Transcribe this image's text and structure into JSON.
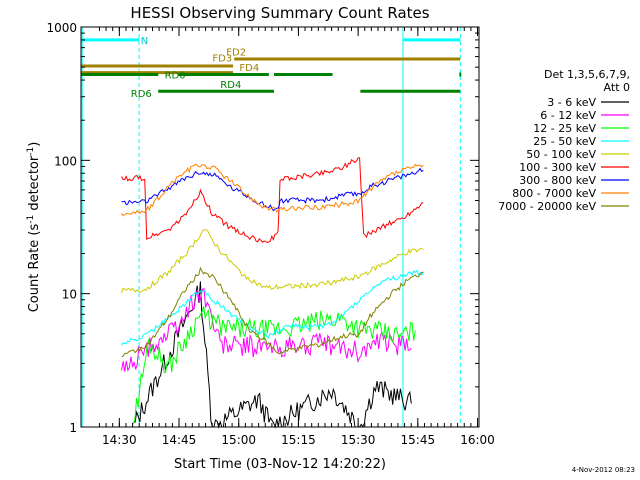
{
  "chart_data": {
    "type": "line",
    "title": "HESSI Observing Summary Count Rates",
    "xlabel": "Start Time (03-Nov-12 14:20:22)",
    "ylabel_main": "Count Rate (s",
    "ylabel_sup1": "-1",
    "ylabel_mid": " detector",
    "ylabel_sup2": "-1",
    "ylabel_end": ")",
    "x_unit": "minutes after 14:20:22",
    "xlim": [
      0,
      100
    ],
    "ylim": [
      1,
      1000
    ],
    "yscale": "log",
    "x_ticks": [
      {
        "t": 9.63,
        "label": "14:30"
      },
      {
        "t": 24.63,
        "label": "14:45"
      },
      {
        "t": 39.63,
        "label": "15:00"
      },
      {
        "t": 54.63,
        "label": "15:15"
      },
      {
        "t": 69.63,
        "label": "15:30"
      },
      {
        "t": 84.63,
        "label": "15:45"
      },
      {
        "t": 99.63,
        "label": "16:00"
      }
    ],
    "y_ticks": [
      {
        "v": 1,
        "label": "1"
      },
      {
        "v": 10,
        "label": "10"
      },
      {
        "v": 100,
        "label": "100"
      },
      {
        "v": 1000,
        "label": "1000"
      }
    ],
    "legend_title_1": "Det 1,3,5,6,7,9,",
    "legend_title_2": "Att 0",
    "legend_placement": "right",
    "timestamp": "4-Nov-2012 08:23",
    "night_solid": [
      0.3,
      80.9
    ],
    "night_dashed": [
      14.6,
      95.3
    ],
    "night_label": "N",
    "night_segments": [
      [
        0.3,
        14.6
      ],
      [
        80.9,
        95.3
      ]
    ],
    "flags": [
      {
        "label": "FD2",
        "color": "#a08000",
        "label_t": 36.5,
        "label_v": 655,
        "y_v": 576,
        "segments": [
          [
            38.5,
            95.3
          ]
        ]
      },
      {
        "label": "FD3",
        "color": "#a08000",
        "label_t": 33,
        "label_v": 590,
        "y_v": 510,
        "segments": [
          [
            0,
            38.2
          ]
        ]
      },
      {
        "label": "FD4",
        "color": "#a08000",
        "label_t": 39.8,
        "label_v": 500,
        "y_v": 455,
        "segments": [
          [
            0,
            38.2
          ]
        ]
      },
      {
        "label": "RD0",
        "color": "#008000",
        "label_t": 21,
        "label_v": 440,
        "y_v": 440,
        "segments": [
          [
            0,
            19.4
          ],
          [
            24.5,
            47.2
          ],
          [
            48.5,
            63.2
          ]
        ]
      },
      {
        "label": "RD4",
        "color": "#008000",
        "label_t": 35,
        "label_v": 375,
        "y_v": 330,
        "segments": [
          [
            19.4,
            48.5
          ],
          [
            70.2,
            95.3
          ]
        ]
      },
      {
        "label": "RD6",
        "color": "#008000",
        "label_t": 12.5,
        "label_v": 320,
        "y_v": 320,
        "segments": []
      }
    ],
    "series": [
      {
        "name": "3 - 6 keV",
        "color": "#000000",
        "points": [
          [
            13.2,
            1.0
          ],
          [
            30,
            10.8
          ],
          [
            33,
            1.0
          ],
          [
            44.5,
            1.6
          ],
          [
            48,
            1.0
          ],
          [
            63,
            1.9
          ],
          [
            70,
            1.0
          ],
          [
            74,
            2.0
          ],
          [
            83,
            1.5
          ]
        ]
      },
      {
        "name": "6 - 12 keV",
        "color": "#ff00ff",
        "points": [
          [
            10.2,
            2.6
          ],
          [
            16.5,
            3.8
          ],
          [
            24.5,
            5.8
          ],
          [
            30.5,
            11.0
          ],
          [
            35,
            4.2
          ],
          [
            48,
            3.9
          ],
          [
            60,
            4.2
          ],
          [
            70,
            3.7
          ],
          [
            76,
            4.4
          ],
          [
            83,
            3.9
          ]
        ]
      },
      {
        "name": "12 - 25 keV",
        "color": "#00ff00",
        "points": [
          [
            13.2,
            1.1
          ],
          [
            17,
            4.3
          ],
          [
            22,
            2.8
          ],
          [
            30,
            7.0
          ],
          [
            36,
            5.5
          ],
          [
            48,
            5.3
          ],
          [
            65,
            6.6
          ],
          [
            70,
            5.5
          ],
          [
            80,
            4.8
          ],
          [
            84,
            5.3
          ]
        ]
      },
      {
        "name": "25 - 50 keV",
        "color": "#00ffff",
        "points": [
          [
            10.2,
            4.2
          ],
          [
            16,
            4.8
          ],
          [
            22,
            6.5
          ],
          [
            30,
            10.8
          ],
          [
            37,
            7.3
          ],
          [
            43,
            5.5
          ],
          [
            47.5,
            4.8
          ],
          [
            52,
            5.8
          ],
          [
            58,
            5.6
          ],
          [
            63.5,
            6.0
          ],
          [
            68,
            8.0
          ],
          [
            75,
            12.0
          ],
          [
            82,
            14.0
          ],
          [
            86,
            14.5
          ]
        ]
      },
      {
        "name": "50 - 100 keV",
        "color": "#cccc00",
        "points": [
          [
            10.2,
            10.5
          ],
          [
            16,
            10.7
          ],
          [
            22,
            14.5
          ],
          [
            27,
            21.0
          ],
          [
            31,
            30.5
          ],
          [
            35,
            21.0
          ],
          [
            40,
            14.5
          ],
          [
            45,
            11.5
          ],
          [
            47,
            11.0
          ],
          [
            49.5,
            11.2
          ],
          [
            55,
            11.4
          ],
          [
            62,
            12.0
          ],
          [
            68,
            13.0
          ],
          [
            72,
            14.5
          ],
          [
            78,
            18.0
          ],
          [
            82,
            20.5
          ],
          [
            86,
            21.5
          ]
        ]
      },
      {
        "name": "100 - 300 keV",
        "color": "#ff0000",
        "points": [
          [
            10.2,
            73
          ],
          [
            16,
            74
          ],
          [
            16.5,
            26
          ],
          [
            22,
            30
          ],
          [
            26,
            38
          ],
          [
            30,
            58
          ],
          [
            33,
            40
          ],
          [
            37,
            32
          ],
          [
            42,
            27
          ],
          [
            46,
            24
          ],
          [
            49.5,
            28
          ],
          [
            50,
            72
          ],
          [
            56,
            76
          ],
          [
            62,
            82
          ],
          [
            66,
            90
          ],
          [
            70,
            104
          ],
          [
            71,
            27
          ],
          [
            76,
            32
          ],
          [
            81,
            37
          ],
          [
            86,
            48
          ]
        ]
      },
      {
        "name": "300 - 800 keV",
        "color": "#0000ff",
        "points": [
          [
            10.2,
            48
          ],
          [
            16,
            49
          ],
          [
            18,
            52
          ],
          [
            22,
            62
          ],
          [
            26,
            73
          ],
          [
            30,
            82
          ],
          [
            34,
            76
          ],
          [
            38,
            62
          ],
          [
            42,
            54
          ],
          [
            46,
            46
          ],
          [
            49.5,
            43
          ],
          [
            50,
            50
          ],
          [
            56,
            50
          ],
          [
            62,
            51
          ],
          [
            66,
            55
          ],
          [
            70,
            56
          ],
          [
            73,
            64
          ],
          [
            78,
            72
          ],
          [
            82,
            78
          ],
          [
            86,
            84
          ]
        ]
      },
      {
        "name": "800 - 7000 keV",
        "color": "#ff8000",
        "points": [
          [
            10.2,
            40
          ],
          [
            16,
            41
          ],
          [
            18,
            46
          ],
          [
            22,
            64
          ],
          [
            26,
            82
          ],
          [
            30,
            93
          ],
          [
            34,
            86
          ],
          [
            38,
            68
          ],
          [
            42,
            54
          ],
          [
            46,
            45
          ],
          [
            49.5,
            42
          ],
          [
            51,
            43
          ],
          [
            56,
            44
          ],
          [
            62,
            45
          ],
          [
            66,
            47
          ],
          [
            70,
            50
          ],
          [
            73,
            62
          ],
          [
            78,
            78
          ],
          [
            82,
            86
          ],
          [
            86,
            92
          ]
        ]
      },
      {
        "name": "7000 - 20000 keV",
        "color": "#808000",
        "points": [
          [
            10.2,
            3.4
          ],
          [
            14,
            3.8
          ],
          [
            17,
            4.2
          ],
          [
            22,
            6.6
          ],
          [
            26,
            10.5
          ],
          [
            30,
            15.0
          ],
          [
            33,
            13.5
          ],
          [
            37,
            9.5
          ],
          [
            42,
            5.5
          ],
          [
            46,
            4.5
          ],
          [
            49.5,
            3.6
          ],
          [
            53,
            3.8
          ],
          [
            60,
            4.2
          ],
          [
            66,
            4.8
          ],
          [
            70,
            5.0
          ],
          [
            73,
            7.0
          ],
          [
            78,
            10.0
          ],
          [
            82,
            12.5
          ],
          [
            86,
            14.5
          ]
        ]
      }
    ]
  }
}
